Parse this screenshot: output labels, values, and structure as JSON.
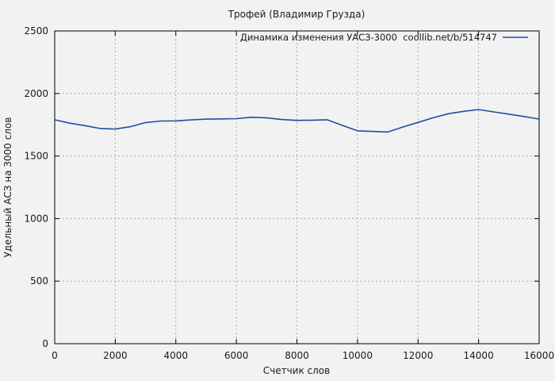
{
  "window": {
    "background_color": "#f2f2f2"
  },
  "chart_data": {
    "type": "line",
    "title": "Трофей (Владимир Грузда)",
    "xlabel": "Счетчик слов",
    "ylabel": "Удельный АСЗ на 3000 слов",
    "xlim": [
      0,
      16000
    ],
    "ylim": [
      0,
      2500
    ],
    "x_ticks": [
      0,
      2000,
      4000,
      6000,
      8000,
      10000,
      12000,
      14000,
      16000
    ],
    "y_ticks": [
      0,
      500,
      1000,
      1500,
      2000,
      2500
    ],
    "grid": true,
    "grid_style": "dashed",
    "legend_position": "top-right-inside",
    "axis_color": "#000000",
    "grid_color": "#a9a9a9",
    "text_color": "#1a1a1a",
    "series": [
      {
        "name": "Динамика изменения УАСЗ-3000  coollib.net/b/514747",
        "color": "#1c4fa5",
        "points": [
          [
            0,
            1790
          ],
          [
            500,
            1763
          ],
          [
            1000,
            1743
          ],
          [
            1500,
            1720
          ],
          [
            2000,
            1716
          ],
          [
            2500,
            1735
          ],
          [
            3000,
            1768
          ],
          [
            3500,
            1780
          ],
          [
            4000,
            1781
          ],
          [
            4500,
            1789
          ],
          [
            5000,
            1795
          ],
          [
            5500,
            1797
          ],
          [
            6000,
            1799
          ],
          [
            6500,
            1810
          ],
          [
            7000,
            1806
          ],
          [
            7500,
            1792
          ],
          [
            8000,
            1785
          ],
          [
            8500,
            1787
          ],
          [
            9000,
            1790
          ],
          [
            9500,
            1745
          ],
          [
            10000,
            1702
          ],
          [
            10500,
            1697
          ],
          [
            11000,
            1692
          ],
          [
            11500,
            1732
          ],
          [
            12000,
            1769
          ],
          [
            12500,
            1806
          ],
          [
            13000,
            1838
          ],
          [
            13500,
            1857
          ],
          [
            14000,
            1872
          ],
          [
            14500,
            1853
          ],
          [
            15000,
            1835
          ],
          [
            15500,
            1816
          ],
          [
            16000,
            1796
          ]
        ]
      }
    ]
  }
}
